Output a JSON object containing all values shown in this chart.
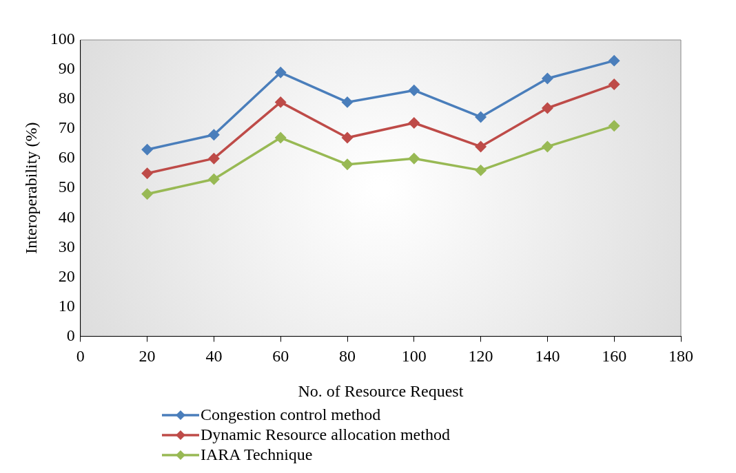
{
  "chart_data": {
    "type": "line",
    "xlabel": "No. of Resource Request",
    "ylabel": "Interoperability (%)",
    "x": [
      20,
      40,
      60,
      80,
      100,
      120,
      140,
      160
    ],
    "series": [
      {
        "name": "Congestion control method",
        "color": "#4a7ebb",
        "values": [
          63,
          68,
          89,
          79,
          83,
          74,
          87,
          93
        ]
      },
      {
        "name": "Dynamic Resource allocation method",
        "color": "#be4b48",
        "values": [
          55,
          60,
          79,
          67,
          72,
          64,
          77,
          85
        ]
      },
      {
        "name": "IARA Technique",
        "color": "#98b954",
        "values": [
          48,
          53,
          67,
          58,
          60,
          56,
          64,
          71
        ]
      }
    ],
    "xlim": [
      0,
      180
    ],
    "xticks": [
      0,
      20,
      40,
      60,
      80,
      100,
      120,
      140,
      160,
      180
    ],
    "ylim": [
      0,
      100
    ],
    "yticks": [
      0,
      10,
      20,
      30,
      40,
      50,
      60,
      70,
      80,
      90,
      100
    ],
    "grid": false,
    "legend": "bottom",
    "marker": "diamond",
    "line_style": "solid"
  }
}
